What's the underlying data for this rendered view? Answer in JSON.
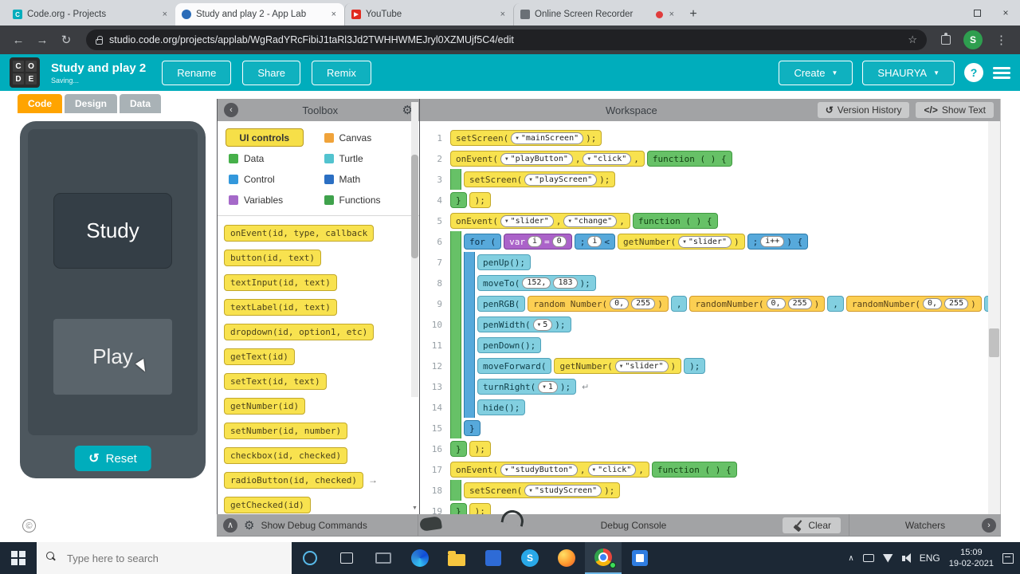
{
  "colors": {
    "brand_teal": "#00adbc",
    "code_tab_orange": "#ffa400",
    "block_yellow": "#f8e24f",
    "block_green": "#67c167",
    "block_blue": "#57a9db",
    "block_cyan": "#82cfe0",
    "block_purple": "#ab63c9",
    "block_math": "#fccf52",
    "recording_red": "#e03c3c"
  },
  "icons": {
    "close": "×",
    "new_tab": "+",
    "back": "←",
    "forward": "→",
    "refresh": "↻",
    "star": "☆",
    "menu": "⋮",
    "chevron_down": "▼",
    "reset": "↺",
    "history": "↺",
    "show_text_glyph": "</>",
    "collapse_up": "∧",
    "chevron_right": "›",
    "chevron_left": "‹",
    "gear": "⚙",
    "play": "▶",
    "caret_up": "∧"
  },
  "browser": {
    "tabs": [
      {
        "title": "Code.org - Projects",
        "icon": "codeorg",
        "active": false,
        "recording": false
      },
      {
        "title": "Study and play 2 - App Lab",
        "icon": "applab",
        "active": true,
        "recording": false
      },
      {
        "title": "YouTube",
        "icon": "youtube",
        "active": false,
        "recording": false
      },
      {
        "title": "Online Screen Recorder",
        "icon": "recorder",
        "active": false,
        "recording": true
      }
    ],
    "url": "studio.code.org/projects/applab/WgRadYRcFibiJ1taRl3Jd2TWHHWMEJryl0XZMUjf5C4/edit",
    "avatar": "S"
  },
  "app_header": {
    "logo": [
      "C",
      "O",
      "D",
      "E"
    ],
    "title": "Study and play 2",
    "status": "Saving...",
    "actions": [
      "Rename",
      "Share",
      "Remix"
    ],
    "create": "Create",
    "user": "SHAURYA",
    "help": "?"
  },
  "left_panel": {
    "tabs": [
      {
        "label": "Code",
        "active": true
      },
      {
        "label": "Design",
        "active": false
      },
      {
        "label": "Data",
        "active": false
      }
    ],
    "preview": {
      "study": "Study",
      "play": "Play",
      "reset": "Reset"
    },
    "copyright": "©"
  },
  "toolbox": {
    "title": "Toolbox",
    "categories": [
      {
        "label": "UI controls",
        "color": "#f6df48",
        "selected": true
      },
      {
        "label": "Canvas",
        "color": "#f0a33a",
        "selected": false
      },
      {
        "label": "Data",
        "color": "#46b04a",
        "selected": false
      },
      {
        "label": "Turtle",
        "color": "#52c3cf",
        "selected": false
      },
      {
        "label": "Control",
        "color": "#3398dc",
        "selected": false
      },
      {
        "label": "Math",
        "color": "#2b6fc3",
        "selected": false
      },
      {
        "label": "Variables",
        "color": "#a569c9",
        "selected": false
      },
      {
        "label": "Functions",
        "color": "#3fa24c",
        "selected": false
      }
    ],
    "blocks": [
      {
        "label": "onEvent(id, type, callback",
        "arrow": false
      },
      {
        "label": "button(id, text)",
        "arrow": false
      },
      {
        "label": "textInput(id, text)",
        "arrow": false
      },
      {
        "label": "textLabel(id, text)",
        "arrow": false
      },
      {
        "label": "dropdown(id, option1, etc)",
        "arrow": false
      },
      {
        "label": "getText(id)",
        "arrow": false
      },
      {
        "label": "setText(id, text)",
        "arrow": false
      },
      {
        "label": "getNumber(id)",
        "arrow": false
      },
      {
        "label": "setNumber(id, number)",
        "arrow": false
      },
      {
        "label": "checkbox(id, checked)",
        "arrow": false
      },
      {
        "label": "radioButton(id, checked)",
        "arrow": true
      },
      {
        "label": "getChecked(id)",
        "arrow": false
      }
    ]
  },
  "workspace": {
    "title": "Workspace",
    "version_history": "Version History",
    "show_text": "Show Text",
    "lines": [
      {
        "n": "1",
        "blocks": [
          {
            "c": "y",
            "parts": [
              {
                "t": "setScreen("
              },
              {
                "dd": "\"mainScreen\""
              },
              {
                "t": ");"
              }
            ]
          }
        ]
      },
      {
        "n": "2",
        "blocks": [
          {
            "c": "y",
            "parts": [
              {
                "t": "onEvent("
              },
              {
                "dd": "\"playButton\""
              },
              {
                "t": ","
              },
              {
                "dd": "\"click\""
              },
              {
                "t": ","
              }
            ]
          },
          {
            "c": "g",
            "parts": [
              {
                "t": "function ( ) {"
              }
            ]
          }
        ]
      },
      {
        "n": "3",
        "strips": [
          "g"
        ],
        "blocks": [
          {
            "c": "y",
            "parts": [
              {
                "t": "setScreen("
              },
              {
                "dd": "\"playScreen\""
              },
              {
                "t": ");"
              }
            ]
          }
        ]
      },
      {
        "n": "4",
        "blocks": [
          {
            "c": "g",
            "parts": [
              {
                "t": "}"
              }
            ]
          },
          {
            "c": "y",
            "parts": [
              {
                "t": ");"
              }
            ]
          }
        ]
      },
      {
        "n": "5",
        "blocks": [
          {
            "c": "y",
            "parts": [
              {
                "t": "onEvent("
              },
              {
                "dd": "\"slider\""
              },
              {
                "t": ","
              },
              {
                "dd": "\"change\""
              },
              {
                "t": ","
              }
            ]
          },
          {
            "c": "g",
            "parts": [
              {
                "t": "function ( ) {"
              }
            ]
          }
        ]
      },
      {
        "n": "6",
        "strips": [
          "g"
        ],
        "blocks": [
          {
            "c": "b",
            "parts": [
              {
                "t": "for ("
              }
            ]
          },
          {
            "c": "p",
            "parts": [
              {
                "t": "var"
              },
              {
                "pill": "i"
              },
              {
                "t": "="
              },
              {
                "pill": "0"
              }
            ]
          },
          {
            "c": "b",
            "parts": [
              {
                "t": ";"
              },
              {
                "pill": "i"
              },
              {
                "t": "<"
              }
            ]
          },
          {
            "c": "y",
            "parts": [
              {
                "t": "getNumber("
              },
              {
                "dd": "\"slider\""
              },
              {
                "t": ")"
              }
            ]
          },
          {
            "c": "b",
            "parts": [
              {
                "t": ";"
              },
              {
                "pill": "i++"
              },
              {
                "t": ") {"
              }
            ]
          }
        ]
      },
      {
        "n": "7",
        "strips": [
          "g",
          "b"
        ],
        "blocks": [
          {
            "c": "c",
            "parts": [
              {
                "t": "penUp();"
              }
            ]
          }
        ]
      },
      {
        "n": "8",
        "strips": [
          "g",
          "b"
        ],
        "blocks": [
          {
            "c": "c",
            "parts": [
              {
                "t": "moveTo("
              },
              {
                "pill": "152,"
              },
              {
                "pill": "183"
              },
              {
                "t": ");"
              }
            ]
          }
        ]
      },
      {
        "n": "9",
        "strips": [
          "g",
          "b"
        ],
        "blocks": [
          {
            "c": "c",
            "parts": [
              {
                "t": "penRGB("
              }
            ]
          },
          {
            "c": "m",
            "parts": [
              {
                "t": "random Number("
              },
              {
                "pill": "0,"
              },
              {
                "pill": "255"
              },
              {
                "t": ")"
              }
            ]
          },
          {
            "c": "c",
            "parts": [
              {
                "t": ","
              }
            ]
          },
          {
            "c": "m",
            "parts": [
              {
                "t": "randomNumber("
              },
              {
                "pill": "0,"
              },
              {
                "pill": "255"
              },
              {
                "t": ")"
              }
            ]
          },
          {
            "c": "c",
            "parts": [
              {
                "t": ","
              }
            ]
          },
          {
            "c": "m",
            "parts": [
              {
                "t": "randomNumber("
              },
              {
                "pill": "0,"
              },
              {
                "pill": "255"
              },
              {
                "t": ")"
              }
            ]
          },
          {
            "c": "c",
            "parts": [
              {
                "t": ");"
              }
            ]
          }
        ]
      },
      {
        "n": "10",
        "strips": [
          "g",
          "b"
        ],
        "blocks": [
          {
            "c": "c",
            "parts": [
              {
                "t": "penWidth("
              },
              {
                "dd": "5"
              },
              {
                "t": ");"
              }
            ]
          }
        ]
      },
      {
        "n": "11",
        "strips": [
          "g",
          "b"
        ],
        "blocks": [
          {
            "c": "c",
            "parts": [
              {
                "t": "penDown();"
              }
            ]
          }
        ]
      },
      {
        "n": "12",
        "strips": [
          "g",
          "b"
        ],
        "blocks": [
          {
            "c": "c",
            "parts": [
              {
                "t": "moveForward("
              }
            ]
          },
          {
            "c": "y",
            "parts": [
              {
                "t": "getNumber("
              },
              {
                "dd": "\"slider\""
              },
              {
                "t": ")"
              }
            ]
          },
          {
            "c": "c",
            "parts": [
              {
                "t": ");"
              }
            ]
          }
        ]
      },
      {
        "n": "13",
        "strips": [
          "g",
          "b"
        ],
        "blocks": [
          {
            "c": "c",
            "parts": [
              {
                "t": "turnRight("
              },
              {
                "dd": "1"
              },
              {
                "t": ");"
              }
            ]
          }
        ],
        "trail": "↵"
      },
      {
        "n": "14",
        "strips": [
          "g",
          "b"
        ],
        "blocks": [
          {
            "c": "c",
            "parts": [
              {
                "t": "hide();"
              }
            ]
          }
        ]
      },
      {
        "n": "15",
        "strips": [
          "g"
        ],
        "blocks": [
          {
            "c": "b",
            "parts": [
              {
                "t": "}"
              }
            ]
          }
        ]
      },
      {
        "n": "16",
        "blocks": [
          {
            "c": "g",
            "parts": [
              {
                "t": "}"
              }
            ]
          },
          {
            "c": "y",
            "parts": [
              {
                "t": ");"
              }
            ]
          }
        ]
      },
      {
        "n": "17",
        "blocks": [
          {
            "c": "y",
            "parts": [
              {
                "t": "onEvent("
              },
              {
                "dd": "\"studyButton\""
              },
              {
                "t": ","
              },
              {
                "dd": "\"click\""
              },
              {
                "t": ","
              }
            ]
          },
          {
            "c": "g",
            "parts": [
              {
                "t": "function ( ) {"
              }
            ]
          }
        ]
      },
      {
        "n": "18",
        "strips": [
          "g"
        ],
        "blocks": [
          {
            "c": "y",
            "parts": [
              {
                "t": "setScreen("
              },
              {
                "dd": "\"studyScreen\""
              },
              {
                "t": ");"
              }
            ]
          }
        ]
      },
      {
        "n": "19",
        "blocks": [
          {
            "c": "g",
            "parts": [
              {
                "t": "}"
              }
            ]
          },
          {
            "c": "y",
            "parts": [
              {
                "t": ");"
              }
            ]
          }
        ]
      }
    ]
  },
  "debug": {
    "show_commands": "Show Debug Commands",
    "console": "Debug Console",
    "clear": "Clear",
    "watchers": "Watchers"
  },
  "taskbar": {
    "search": "Type here to search",
    "lang": "ENG",
    "time": "15:09",
    "date": "19-02-2021"
  }
}
